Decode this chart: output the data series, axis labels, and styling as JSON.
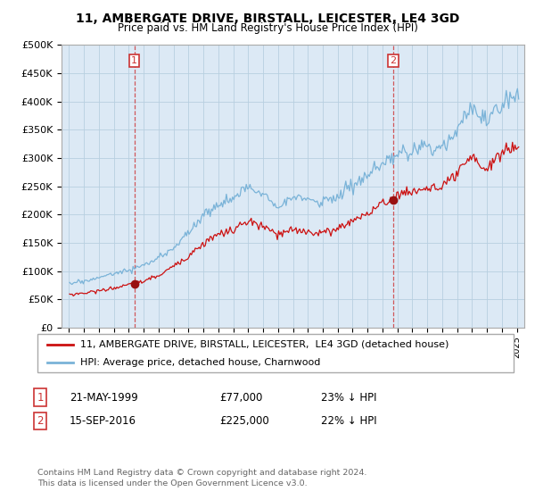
{
  "title": "11, AMBERGATE DRIVE, BIRSTALL, LEICESTER, LE4 3GD",
  "subtitle": "Price paid vs. HM Land Registry's House Price Index (HPI)",
  "ylabel_ticks": [
    "£0",
    "£50K",
    "£100K",
    "£150K",
    "£200K",
    "£250K",
    "£300K",
    "£350K",
    "£400K",
    "£450K",
    "£500K"
  ],
  "ytick_values": [
    0,
    50000,
    100000,
    150000,
    200000,
    250000,
    300000,
    350000,
    400000,
    450000,
    500000
  ],
  "sale1": {
    "date_num": 1999.38,
    "price": 77000,
    "label": "1"
  },
  "sale2": {
    "date_num": 2016.71,
    "price": 225000,
    "label": "2"
  },
  "legend_line1": "11, AMBERGATE DRIVE, BIRSTALL, LEICESTER,  LE4 3GD (detached house)",
  "legend_line2": "HPI: Average price, detached house, Charnwood",
  "footer": "Contains HM Land Registry data © Crown copyright and database right 2024.\nThis data is licensed under the Open Government Licence v3.0.",
  "hpi_color": "#7ab3d8",
  "price_color": "#cc1111",
  "sale_marker_color": "#991111",
  "dashed_line_color": "#cc3333",
  "background_color": "#ffffff",
  "plot_bg_color": "#dce9f5",
  "grid_color": "#b8cfe0",
  "xmin": 1994.5,
  "xmax": 2025.5,
  "ymin": 0,
  "ymax": 500000,
  "ann1_date": "21-MAY-1999",
  "ann1_price": "£77,000",
  "ann1_hpi": "23% ↓ HPI",
  "ann2_date": "15-SEP-2016",
  "ann2_price": "£225,000",
  "ann2_hpi": "22% ↓ HPI"
}
